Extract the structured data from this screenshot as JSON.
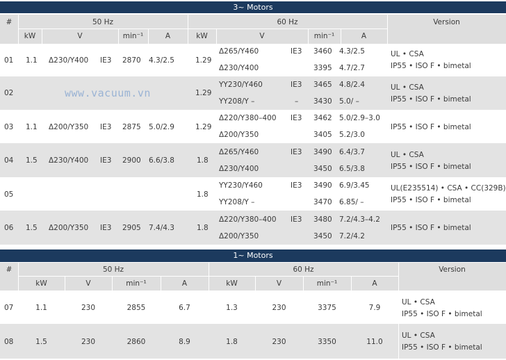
{
  "three_phase": {
    "title": "3~ Motors",
    "headers": {
      "num": "#",
      "hz50": "50 Hz",
      "hz60": "60 Hz",
      "version": "Version",
      "kw": "kW",
      "v": "V",
      "min": "min⁻¹",
      "a": "A"
    },
    "rows": [
      {
        "num": "01",
        "kw50": "1.1",
        "v50": "Δ230/Y400",
        "ie50": "IE3",
        "min50": "2870",
        "a50": "4.3/2.5",
        "kw60": "1.29",
        "l1": {
          "v": "Δ265/Y460",
          "ie": "IE3",
          "min": "3460",
          "a": "4.3/2.5"
        },
        "l2": {
          "v": "Δ230/Y400",
          "ie": "",
          "min": "3395",
          "a": "4.7/2.7"
        },
        "ver1": "UL • CSA",
        "ver2": "IP55 • ISO F • bimetal"
      },
      {
        "num": "02",
        "kw50": "",
        "v50": "",
        "ie50": "",
        "min50": "",
        "a50": "",
        "kw60": "1.29",
        "l1": {
          "v": "YY230/Y460",
          "ie": "IE3",
          "min": "3465",
          "a": "4.8/2.4"
        },
        "l2": {
          "v": "YY208/Y –",
          "ie": "–",
          "min": "3430",
          "a": "5.0/ –"
        },
        "ver1": "UL • CSA",
        "ver2": "IP55 • ISO F • bimetal"
      },
      {
        "num": "03",
        "kw50": "1.1",
        "v50": "Δ200/Y350",
        "ie50": "IE3",
        "min50": "2875",
        "a50": "5.0/2.9",
        "kw60": "1.29",
        "l1": {
          "v": "Δ220/Y380–400",
          "ie": "IE3",
          "min": "3462",
          "a": "5.0/2.9–3.0"
        },
        "l2": {
          "v": "Δ200/Y350",
          "ie": "",
          "min": "3405",
          "a": "5.2/3.0"
        },
        "ver1": "",
        "ver2": "IP55 • ISO F • bimetal"
      },
      {
        "num": "04",
        "kw50": "1.5",
        "v50": "Δ230/Y400",
        "ie50": "IE3",
        "min50": "2900",
        "a50": "6.6/3.8",
        "kw60": "1.8",
        "l1": {
          "v": "Δ265/Y460",
          "ie": "IE3",
          "min": "3490",
          "a": "6.4/3.7"
        },
        "l2": {
          "v": "Δ230/Y400",
          "ie": "",
          "min": "3450",
          "a": "6.5/3.8"
        },
        "ver1": "UL • CSA",
        "ver2": "IP55 • ISO F • bimetal"
      },
      {
        "num": "05",
        "kw50": "",
        "v50": "",
        "ie50": "",
        "min50": "",
        "a50": "",
        "kw60": "1.8",
        "l1": {
          "v": "YY230/Y460",
          "ie": "IE3",
          "min": "3490",
          "a": "6.9/3.45"
        },
        "l2": {
          "v": "YY208/Y –",
          "ie": "",
          "min": "3470",
          "a": "6.85/ –"
        },
        "ver1": "UL(E235514) • CSA • CC(329B)",
        "ver2": "IP55 • ISO F • bimetal"
      },
      {
        "num": "06",
        "kw50": "1.5",
        "v50": "Δ200/Y350",
        "ie50": "IE3",
        "min50": "2905",
        "a50": "7.4/4.3",
        "kw60": "1.8",
        "l1": {
          "v": "Δ220/Y380–400",
          "ie": "IE3",
          "min": "3480",
          "a": "7.2/4.3–4.2"
        },
        "l2": {
          "v": "Δ200/Y350",
          "ie": "",
          "min": "3450",
          "a": "7.2/4.2"
        },
        "ver1": "",
        "ver2": "IP55 • ISO F • bimetal"
      }
    ]
  },
  "single_phase": {
    "title": "1~ Motors",
    "headers": {
      "num": "#",
      "hz50": "50 Hz",
      "hz60": "60 Hz",
      "version": "Version",
      "kw": "kW",
      "v": "V",
      "min": "min⁻¹",
      "a": "A"
    },
    "rows": [
      {
        "num": "07",
        "kw50": "1.1",
        "v50": "230",
        "min50": "2855",
        "a50": "6.7",
        "kw60": "1.3",
        "v60": "230",
        "min60": "3375",
        "a60": "7.9",
        "ver1": "UL • CSA",
        "ver2": "IP55 • ISO F • bimetal"
      },
      {
        "num": "08",
        "kw50": "1.5",
        "v50": "230",
        "min50": "2860",
        "a50": "8.9",
        "kw60": "1.8",
        "v60": "230",
        "min60": "3350",
        "a60": "11.0",
        "ver1": "UL • CSA",
        "ver2": "IP55 • ISO F • bimetal"
      }
    ]
  },
  "watermark": "www.vacuum.vn",
  "colors": {
    "header_bar": "#1c3a5e",
    "header_cell": "#dedede",
    "row_alt": "#e3e3e3",
    "watermark": "#9ab3d4"
  }
}
